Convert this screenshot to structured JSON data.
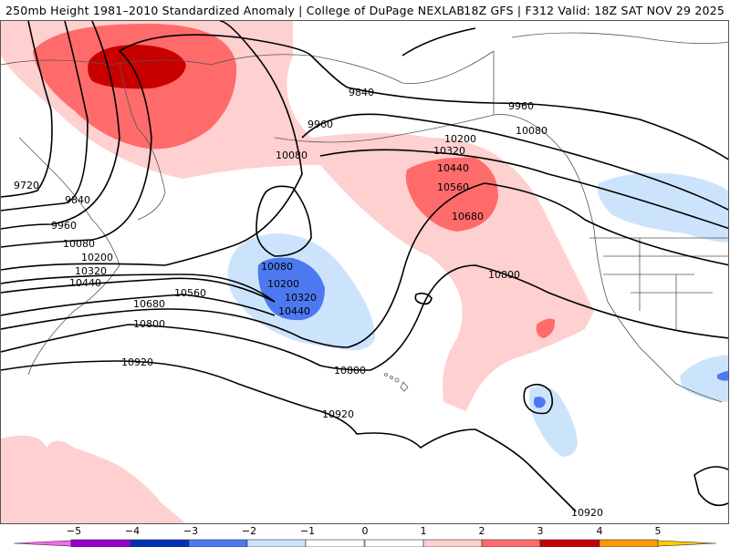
{
  "header": {
    "title_left": "250mb Height 1981–2010 Standardized Anomaly | College of DuPage NEXLAB",
    "title_right": "18Z GFS | F312 Valid: 18Z SAT NOV 29 2025"
  },
  "map": {
    "variable": "250mb Height",
    "units": "m",
    "contour_interval": 120,
    "contour_labels": [
      {
        "value": "9720"
      },
      {
        "value": "9840"
      },
      {
        "value": "9960"
      },
      {
        "value": "10080"
      },
      {
        "value": "10200"
      },
      {
        "value": "10320"
      },
      {
        "value": "10440"
      },
      {
        "value": "10560"
      },
      {
        "value": "10680"
      },
      {
        "value": "10800"
      },
      {
        "value": "10920"
      },
      {
        "value": "9840"
      },
      {
        "value": "9960"
      },
      {
        "value": "10080"
      },
      {
        "value": "10200"
      },
      {
        "value": "10320"
      },
      {
        "value": "10440"
      },
      {
        "value": "10560"
      },
      {
        "value": "10680"
      },
      {
        "value": "10080"
      },
      {
        "value": "10200"
      },
      {
        "value": "10320"
      },
      {
        "value": "10440"
      },
      {
        "value": "10800"
      },
      {
        "value": "10800"
      },
      {
        "value": "10920"
      },
      {
        "value": "10920"
      },
      {
        "value": "9960"
      },
      {
        "value": "10080"
      },
      {
        "value": "10800"
      }
    ],
    "anomaly_features": [
      {
        "name": "positive-anomaly-eastern-siberia",
        "max_sigma": 3
      },
      {
        "name": "positive-anomaly-gulf-of-alaska",
        "max_sigma": 2
      },
      {
        "name": "negative-anomaly-north-pacific",
        "min_sigma": -2
      },
      {
        "name": "negative-anomaly-western-canada",
        "min_sigma": -1
      },
      {
        "name": "negative-anomaly-subtropical-pacific",
        "min_sigma": -2
      },
      {
        "name": "negative-anomaly-mexico",
        "min_sigma": -2
      }
    ]
  },
  "legend": {
    "ticks": [
      "−5",
      "−4",
      "−3",
      "−2",
      "−1",
      "0",
      "1",
      "2",
      "3",
      "4",
      "5"
    ],
    "bins": [
      {
        "range": "< -5",
        "color": "#ff66ee"
      },
      {
        "range": "-5 to -4",
        "color": "#9900cc"
      },
      {
        "range": "-4 to -3",
        "color": "#0033bb"
      },
      {
        "range": "-3 to -2",
        "color": "#4d79f0"
      },
      {
        "range": "-2 to -1",
        "color": "#cce4fb"
      },
      {
        "range": "-1 to 0",
        "color": "#ffffff"
      },
      {
        "range": "0 to 1",
        "color": "#ffffff"
      },
      {
        "range": "1 to 2",
        "color": "#ffd0d0"
      },
      {
        "range": "2 to 3",
        "color": "#ff6b6b"
      },
      {
        "range": "3 to 4",
        "color": "#c80000"
      },
      {
        "range": "4 to 5",
        "color": "#ff9900"
      },
      {
        "range": "> 5",
        "color": "#ffcc00"
      }
    ]
  },
  "colors": {
    "pos1": "#ffd0d0",
    "pos2": "#ff6b6b",
    "pos3": "#c80000",
    "neg1": "#cce4fb",
    "neg2": "#4d79f0"
  }
}
